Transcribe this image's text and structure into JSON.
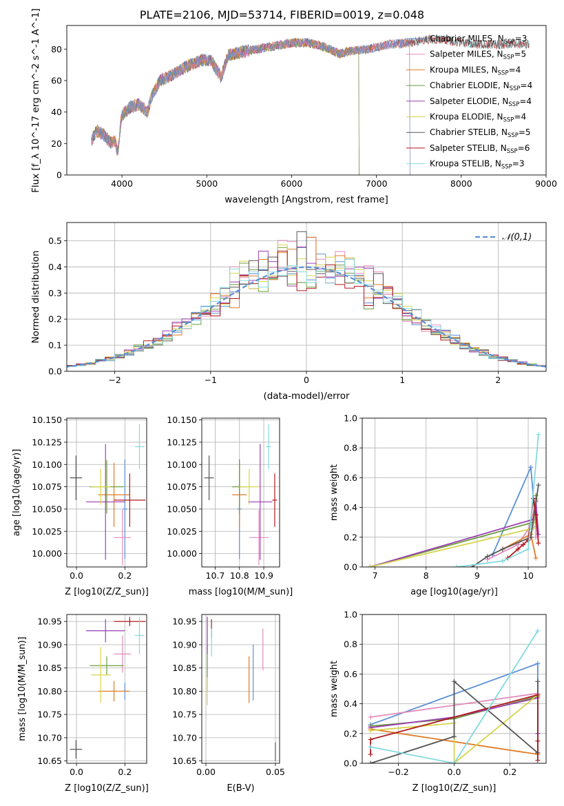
{
  "figure": {
    "title": "PLATE=2106, MJD=53714, FIBERID=0019, z=0.048"
  },
  "colors": {
    "Chabrier MILES": "#5b8fd6",
    "Salpeter MILES": "#e48bbd",
    "Kroupa MILES": "#e07b25",
    "Chabrier ELODIE": "#6b9c3a",
    "Salpeter ELODIE": "#9c3fb4",
    "Kroupa ELODIE": "#d6d44a",
    "Chabrier STELIB": "#555555",
    "Salpeter STELIB": "#b0161b",
    "Kroupa STELIB": "#82d9df"
  },
  "chart_data": [
    {
      "type": "line",
      "panel": "spectrum",
      "xlabel": "wavelength [Angstrom, rest frame]",
      "ylabel": "Flux [f_λ 10^-17 erg cm^-2 s^-1 A^-1]",
      "xlim": [
        3350,
        9000
      ],
      "ylim": [
        0,
        95
      ],
      "xticks": [
        4000,
        5000,
        6000,
        7000,
        8000,
        9000
      ],
      "yticks": [
        0,
        20,
        40,
        60,
        80
      ],
      "legend_position": "top-right",
      "legend": [
        {
          "name": "Chabrier MILES",
          "nssp": "3"
        },
        {
          "name": "Salpeter MILES",
          "nssp": "5"
        },
        {
          "name": "Kroupa MILES",
          "nssp": "4"
        },
        {
          "name": "Chabrier ELODIE",
          "nssp": "4"
        },
        {
          "name": "Salpeter ELODIE",
          "nssp": "4"
        },
        {
          "name": "Kroupa ELODIE",
          "nssp": "4"
        },
        {
          "name": "Chabrier STELIB",
          "nssp": "5"
        },
        {
          "name": "Salpeter STELIB",
          "nssp": "6"
        },
        {
          "name": "Kroupa STELIB",
          "nssp": "3"
        }
      ],
      "continuum": [
        [
          3640,
          22
        ],
        [
          3700,
          28
        ],
        [
          3800,
          25
        ],
        [
          3870,
          20
        ],
        [
          3920,
          22
        ],
        [
          3950,
          14
        ],
        [
          3980,
          30
        ],
        [
          4000,
          38
        ],
        [
          4100,
          43
        ],
        [
          4200,
          45
        ],
        [
          4300,
          40
        ],
        [
          4350,
          50
        ],
        [
          4450,
          60
        ],
        [
          4600,
          64
        ],
        [
          4800,
          70
        ],
        [
          4950,
          73
        ],
        [
          5050,
          73
        ],
        [
          5170,
          62
        ],
        [
          5250,
          76
        ],
        [
          5400,
          78
        ],
        [
          5600,
          80
        ],
        [
          5800,
          82
        ],
        [
          5900,
          83
        ],
        [
          6000,
          84
        ],
        [
          6200,
          84
        ],
        [
          6400,
          81
        ],
        [
          6563,
          77
        ],
        [
          6700,
          79
        ],
        [
          6900,
          80
        ],
        [
          7000,
          81
        ],
        [
          7150,
          83
        ],
        [
          7400,
          84
        ],
        [
          7600,
          86
        ],
        [
          7800,
          86
        ],
        [
          8000,
          84
        ],
        [
          8200,
          83
        ],
        [
          8500,
          83
        ],
        [
          8800,
          83
        ]
      ]
    },
    {
      "type": "line",
      "panel": "residual-histogram",
      "xlabel": "(data-model)/error",
      "ylabel": "Normed distribution",
      "xlim": [
        -2.5,
        2.5
      ],
      "ylim": [
        0,
        0.57
      ],
      "xticks": [
        -2,
        -1,
        0,
        1,
        2
      ],
      "yticks": [
        0.0,
        0.1,
        0.2,
        0.3,
        0.4,
        0.5
      ],
      "grid": true,
      "bin_width": 0.1,
      "reference_curve": "𝒩(0,1)",
      "legend_position": "top-right"
    },
    {
      "type": "scatter",
      "panel": "age-vs-Z",
      "xlabel": "Z [log10(Z/Z_sun)]",
      "ylabel": "age [log10(age/yr)]",
      "xlim": [
        -0.04,
        0.29
      ],
      "ylim": [
        9.985,
        10.152
      ],
      "xticks": [
        0.0,
        0.2
      ],
      "yticks": [
        10.0,
        10.025,
        10.05,
        10.075,
        10.1,
        10.125,
        10.15
      ],
      "grid": true,
      "points": [
        {
          "model": "Chabrier MILES",
          "x": 0.2,
          "xerr": 0.01,
          "y": 10.05,
          "yerr": 0.056
        },
        {
          "model": "Salpeter MILES",
          "x": 0.19,
          "xerr": 0.035,
          "y": 10.018,
          "yerr": 0.031
        },
        {
          "model": "Kroupa MILES",
          "x": 0.155,
          "xerr": 0.065,
          "y": 10.066,
          "yerr": 0.036
        },
        {
          "model": "Chabrier ELODIE",
          "x": 0.125,
          "xerr": 0.07,
          "y": 10.075,
          "yerr": 0.03
        },
        {
          "model": "Salpeter ELODIE",
          "x": 0.12,
          "xerr": 0.08,
          "y": 10.058,
          "yerr": 0.065
        },
        {
          "model": "Kroupa ELODIE",
          "x": 0.1,
          "xerr": 0.04,
          "y": 10.075,
          "yerr": 0.02
        },
        {
          "model": "Chabrier STELIB",
          "x": -0.002,
          "xerr": 0.025,
          "y": 10.085,
          "yerr": 0.025
        },
        {
          "model": "Salpeter STELIB",
          "x": 0.22,
          "xerr": 0.065,
          "y": 10.06,
          "yerr": 0.03
        },
        {
          "model": "Kroupa STELIB",
          "x": 0.26,
          "xerr": 0.02,
          "y": 10.12,
          "yerr": 0.025
        }
      ]
    },
    {
      "type": "scatter",
      "panel": "age-vs-mass",
      "xlabel": "mass [log10(M/M_sun)]",
      "ylabel": "",
      "xlim": [
        10.645,
        10.965
      ],
      "ylim": [
        9.985,
        10.152
      ],
      "xticks": [
        10.7,
        10.8,
        10.9
      ],
      "yticks": [
        10.0,
        10.025,
        10.05,
        10.075,
        10.1,
        10.125,
        10.15
      ],
      "grid": true,
      "points": [
        {
          "model": "Chabrier MILES",
          "x": 10.8,
          "xerr": 0.01,
          "y": 10.05,
          "yerr": 0.056
        },
        {
          "model": "Salpeter MILES",
          "x": 10.88,
          "xerr": 0.04,
          "y": 10.018,
          "yerr": 0.031
        },
        {
          "model": "Kroupa MILES",
          "x": 10.8,
          "xerr": 0.03,
          "y": 10.066,
          "yerr": 0.036
        },
        {
          "model": "Chabrier ELODIE",
          "x": 10.8,
          "xerr": 0.03,
          "y": 10.075,
          "yerr": 0.03
        },
        {
          "model": "Salpeter ELODIE",
          "x": 10.885,
          "xerr": 0.05,
          "y": 10.058,
          "yerr": 0.065
        },
        {
          "model": "Kroupa ELODIE",
          "x": 10.84,
          "xerr": 0.04,
          "y": 10.075,
          "yerr": 0.02
        },
        {
          "model": "Chabrier STELIB",
          "x": 10.675,
          "xerr": 0.02,
          "y": 10.085,
          "yerr": 0.025
        },
        {
          "model": "Salpeter STELIB",
          "x": 10.945,
          "xerr": 0.01,
          "y": 10.06,
          "yerr": 0.03
        },
        {
          "model": "Kroupa STELIB",
          "x": 10.92,
          "xerr": 0.01,
          "y": 10.12,
          "yerr": 0.025
        }
      ]
    },
    {
      "type": "line",
      "panel": "mass-weight-vs-age",
      "xlabel": "age [log10(age/yr)]",
      "ylabel": "mass weight",
      "xlim": [
        6.75,
        10.35
      ],
      "ylim": [
        0,
        1
      ],
      "xticks": [
        7,
        8,
        9,
        10
      ],
      "yticks": [
        0.0,
        0.2,
        0.4,
        0.6,
        0.8,
        1.0
      ],
      "grid": true,
      "series": [
        {
          "model": "Chabrier MILES",
          "x": [
            9.3,
            10.05,
            10.15
          ],
          "y": [
            0.08,
            0.67,
            0.27
          ]
        },
        {
          "model": "Salpeter MILES",
          "x": [
            9.2,
            9.8,
            10.05,
            10.15,
            10.15
          ],
          "y": [
            0.05,
            0.15,
            0.28,
            0.45,
            0.2
          ]
        },
        {
          "model": "Kroupa MILES",
          "x": [
            9.5,
            10.05,
            10.15
          ],
          "y": [
            0.12,
            0.22,
            0.06
          ]
        },
        {
          "model": "Chabrier ELODIE",
          "x": [
            6.9,
            10.1,
            10.15
          ],
          "y": [
            0.0,
            0.3,
            0.48
          ]
        },
        {
          "model": "Salpeter ELODIE",
          "x": [
            6.9,
            10.1,
            10.15,
            10.2
          ],
          "y": [
            0.0,
            0.32,
            0.44,
            0.22
          ]
        },
        {
          "model": "Kroupa ELODIE",
          "x": [
            6.9,
            10.1,
            10.15
          ],
          "y": [
            0.0,
            0.26,
            0.46
          ]
        },
        {
          "model": "Chabrier STELIB",
          "x": [
            8.9,
            9.2,
            9.5,
            10.05,
            10.2
          ],
          "y": [
            0.0,
            0.07,
            0.12,
            0.2,
            0.55
          ]
        },
        {
          "model": "Salpeter STELIB",
          "x": [
            9.6,
            9.8,
            9.9,
            10.0,
            10.1,
            10.15,
            10.2
          ],
          "y": [
            0.06,
            0.12,
            0.15,
            0.18,
            0.46,
            0.35,
            0.16
          ]
        },
        {
          "model": "Kroupa STELIB",
          "x": [
            8.6,
            9.5,
            10.0,
            10.2
          ],
          "y": [
            0.0,
            0.04,
            0.12,
            0.89
          ]
        }
      ]
    },
    {
      "type": "scatter",
      "panel": "mass-vs-Z",
      "xlabel": "Z [log10(Z/Z_sun)]",
      "ylabel": "mass [log10(M/M_sun)]",
      "xlim": [
        -0.04,
        0.29
      ],
      "ylim": [
        10.645,
        10.965
      ],
      "xticks": [
        0.0,
        0.2
      ],
      "yticks": [
        10.65,
        10.7,
        10.75,
        10.8,
        10.85,
        10.9,
        10.95
      ],
      "grid": true,
      "points": [
        {
          "model": "Chabrier MILES",
          "x": 0.2,
          "xerr": 0.01,
          "y": 10.8,
          "yerr": 0.018
        },
        {
          "model": "Salpeter MILES",
          "x": 0.19,
          "xerr": 0.035,
          "y": 10.88,
          "yerr": 0.04
        },
        {
          "model": "Kroupa MILES",
          "x": 0.155,
          "xerr": 0.065,
          "y": 10.8,
          "yerr": 0.022
        },
        {
          "model": "Chabrier ELODIE",
          "x": 0.125,
          "xerr": 0.07,
          "y": 10.855,
          "yerr": 0.02
        },
        {
          "model": "Salpeter ELODIE",
          "x": 0.12,
          "xerr": 0.08,
          "y": 10.93,
          "yerr": 0.025
        },
        {
          "model": "Kroupa ELODIE",
          "x": 0.1,
          "xerr": 0.04,
          "y": 10.835,
          "yerr": 0.06
        },
        {
          "model": "Chabrier STELIB",
          "x": -0.002,
          "xerr": 0.025,
          "y": 10.675,
          "yerr": 0.02
        },
        {
          "model": "Salpeter STELIB",
          "x": 0.22,
          "xerr": 0.065,
          "y": 10.95,
          "yerr": 0.01
        },
        {
          "model": "Kroupa STELIB",
          "x": 0.26,
          "xerr": 0.02,
          "y": 10.92,
          "yerr": 0.04
        }
      ]
    },
    {
      "type": "scatter",
      "panel": "mass-vs-ebv",
      "xlabel": "E(B-V)",
      "ylabel": "",
      "xlim": [
        -0.003,
        0.053
      ],
      "ylim": [
        10.645,
        10.965
      ],
      "xticks": [
        0.0,
        0.05
      ],
      "yticks": [
        10.65,
        10.7,
        10.75,
        10.8,
        10.85,
        10.9,
        10.95
      ],
      "grid": true,
      "points": [
        {
          "model": "Chabrier MILES",
          "x": 0.034,
          "y": 10.84,
          "yerr": 0.06
        },
        {
          "model": "Salpeter MILES",
          "x": 0.041,
          "y": 10.89,
          "yerr": 0.045
        },
        {
          "model": "Kroupa MILES",
          "x": 0.031,
          "y": 10.825,
          "yerr": 0.05
        },
        {
          "model": "Chabrier ELODIE",
          "x": 0.001,
          "y": 10.85,
          "yerr": 0.05
        },
        {
          "model": "Salpeter ELODIE",
          "x": 0.001,
          "y": 10.92,
          "yerr": 0.04
        },
        {
          "model": "Kroupa ELODIE",
          "x": 0.001,
          "y": 10.8,
          "yerr": 0.03
        },
        {
          "model": "Chabrier STELIB",
          "x": 0.05,
          "y": 10.67,
          "yerr": 0.02
        },
        {
          "model": "Salpeter STELIB",
          "x": 0.004,
          "y": 10.935,
          "yerr": 0.02
        },
        {
          "model": "Kroupa STELIB",
          "x": 0.004,
          "y": 10.905,
          "yerr": 0.03
        }
      ]
    },
    {
      "type": "line",
      "panel": "mass-weight-vs-Z",
      "xlabel": "Z [log10(Z/Z_sun)]",
      "ylabel": "mass weight",
      "xlim": [
        -0.33,
        0.33
      ],
      "ylim": [
        0,
        1
      ],
      "xticks": [
        -0.2,
        0.0,
        0.2
      ],
      "yticks": [
        0.0,
        0.2,
        0.4,
        0.6,
        0.8,
        1.0
      ],
      "grid": true,
      "series": [
        {
          "model": "Chabrier MILES",
          "x": [
            -0.3,
            0.3,
            0.3
          ],
          "y": [
            0.26,
            0.67,
            0.07
          ]
        },
        {
          "model": "Salpeter MILES",
          "x": [
            -0.3,
            0.3,
            0.3
          ],
          "y": [
            0.31,
            0.47,
            0.2
          ]
        },
        {
          "model": "Kroupa MILES",
          "x": [
            -0.3,
            0.3
          ],
          "y": [
            0.23,
            0.06
          ]
        },
        {
          "model": "Chabrier ELODIE",
          "x": [
            -0.3,
            0.0,
            0.3
          ],
          "y": [
            0.25,
            0.3,
            0.45
          ]
        },
        {
          "model": "Salpeter ELODIE",
          "x": [
            -0.3,
            0.0,
            0.3,
            0.3
          ],
          "y": [
            0.24,
            0.31,
            0.44,
            0.2
          ]
        },
        {
          "model": "Kroupa ELODIE",
          "x": [
            -0.3,
            0.0,
            0.0,
            0.3
          ],
          "y": [
            0.22,
            0.27,
            0.0,
            0.46
          ]
        },
        {
          "model": "Chabrier STELIB",
          "x": [
            -0.3,
            0.0,
            0.0,
            0.3,
            0.3
          ],
          "y": [
            0.0,
            0.18,
            0.55,
            0.07,
            0.55
          ]
        },
        {
          "model": "Salpeter STELIB",
          "x": [
            -0.3,
            -0.3,
            0.3,
            0.3,
            0.3
          ],
          "y": [
            0.06,
            0.16,
            0.46,
            0.15,
            0.02
          ]
        },
        {
          "model": "Kroupa STELIB",
          "x": [
            -0.3,
            0.0,
            0.3
          ],
          "y": [
            0.11,
            0.0,
            0.89
          ]
        }
      ]
    }
  ]
}
